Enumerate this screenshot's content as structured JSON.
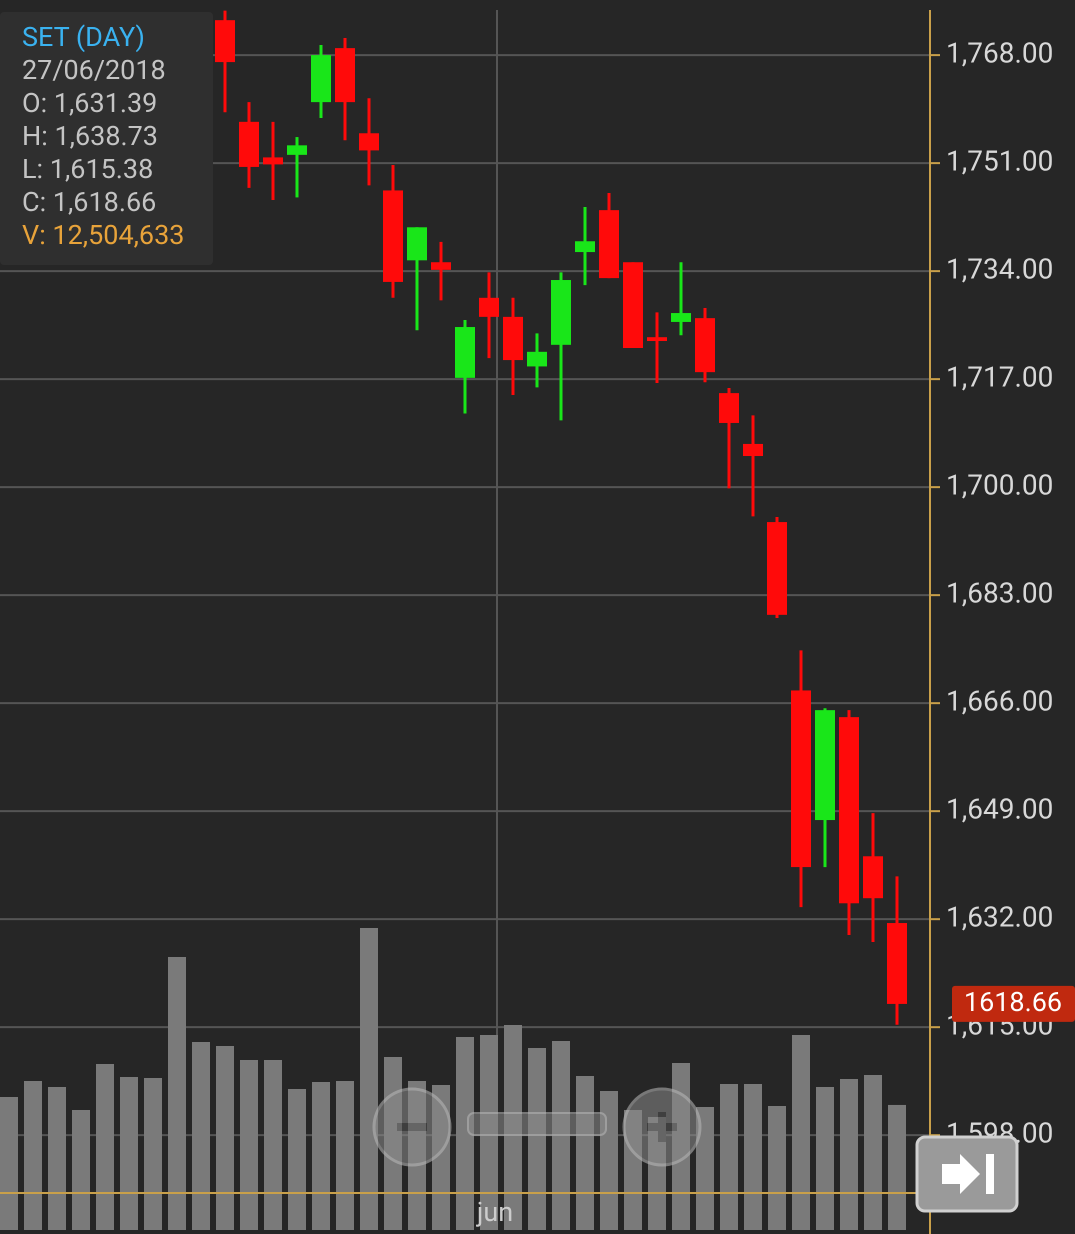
{
  "chart_data": {
    "type": "candlestick",
    "categories": [
      null,
      null,
      null,
      null,
      null,
      null,
      null,
      null,
      null,
      null,
      null,
      null,
      null,
      null,
      null,
      null,
      null,
      null,
      null,
      null,
      "jun",
      null,
      null,
      null,
      null,
      null,
      null,
      null,
      null,
      null,
      null,
      null,
      null,
      null,
      null,
      null,
      null,
      null
    ],
    "open": [
      null,
      null,
      null,
      null,
      null,
      null,
      null,
      null,
      null,
      1773.5,
      1757.5,
      1751.9,
      1752.3,
      1760.6,
      1769.1,
      1755.7,
      1746.7,
      1735.7,
      1735.4,
      1717.2,
      1729.8,
      1726.8,
      1719.0,
      1722.4,
      1737.0,
      1743.6,
      1735.4,
      1723.6,
      1726.0,
      1726.6,
      1714.8,
      1706.8,
      1694.5,
      1668.0,
      1647.6,
      1663.8,
      1641.9,
      1631.39
    ],
    "high": [
      null,
      null,
      null,
      null,
      null,
      null,
      null,
      null,
      null,
      1775.0,
      1760.6,
      1757.5,
      1755.1,
      1769.6,
      1770.7,
      1761.2,
      1750.7,
      1740.9,
      1738.6,
      1726.3,
      1733.8,
      1729.8,
      1724.2,
      1733.8,
      1744.1,
      1746.3,
      1735.4,
      1727.5,
      1735.4,
      1728.2,
      1715.6,
      1711.3,
      1695.3,
      1674.3,
      1665.2,
      1664.9,
      1648.7,
      1638.73
    ],
    "low": [
      null,
      null,
      null,
      null,
      null,
      null,
      null,
      null,
      null,
      1759.0,
      1747.1,
      1745.2,
      1745.6,
      1758.1,
      1754.6,
      1747.5,
      1729.8,
      1724.7,
      1729.4,
      1711.6,
      1720.3,
      1714.5,
      1715.7,
      1710.5,
      1731.8,
      1732.9,
      1721.9,
      1716.4,
      1723.9,
      1716.5,
      1699.8,
      1695.4,
      1679.4,
      1633.9,
      1640.2,
      1629.5,
      1628.4,
      1615.38
    ],
    "close": [
      null,
      null,
      null,
      null,
      null,
      null,
      null,
      null,
      null,
      1766.9,
      1750.4,
      1750.8,
      1753.8,
      1768.0,
      1760.6,
      1753.0,
      1732.3,
      1740.9,
      1734.2,
      1725.2,
      1726.8,
      1720.0,
      1721.3,
      1732.6,
      1738.7,
      1732.9,
      1721.9,
      1723.0,
      1727.4,
      1718.1,
      1710.1,
      1704.9,
      1679.9,
      1640.2,
      1664.9,
      1634.5,
      1635.3,
      1618.66
    ],
    "volume": [
      13300000,
      14900000,
      14300000,
      12000000,
      16600000,
      15300000,
      15200000,
      27300000,
      18800000,
      18400000,
      17000000,
      17000000,
      14100000,
      14800000,
      14900000,
      30200000,
      17300000,
      14900000,
      14500000,
      19300000,
      19500000,
      20500000,
      18200000,
      18900000,
      15400000,
      13900000,
      12000000,
      11300000,
      16700000,
      12300000,
      14600000,
      14600000,
      12400000,
      19500000,
      14300000,
      15100000,
      15500000,
      12504633
    ],
    "up_color": "#19e619",
    "down_color": "#ff0a0a",
    "volume_color": "#7a7a7a",
    "ylim": [
      1588.9,
      1775.1
    ],
    "yticks": [
      {
        "value": 1768,
        "label": "1,768.00"
      },
      {
        "value": 1751,
        "label": "1,751.00"
      },
      {
        "value": 1734,
        "label": "1,734.00"
      },
      {
        "value": 1717,
        "label": "1,717.00"
      },
      {
        "value": 1700,
        "label": "1,700.00"
      },
      {
        "value": 1683,
        "label": "1,683.00"
      },
      {
        "value": 1666,
        "label": "1,666.00"
      },
      {
        "value": 1649,
        "label": "1,649.00"
      },
      {
        "value": 1632,
        "label": "1,632.00"
      },
      {
        "value": 1615,
        "label": "1,615.00"
      },
      {
        "value": 1598,
        "label": "1,598.00"
      }
    ],
    "volume_ylim": [
      0,
      31000000
    ],
    "grid": true,
    "last_price": 1618.66,
    "tooltip": {
      "title": "SET (DAY)",
      "date": "27/06/2018",
      "open": "O: 1,631.39",
      "high": "H: 1,638.73",
      "low": "L: 1,615.38",
      "close": "C: 1,618.66",
      "volume": "V: 12,504,633"
    }
  }
}
